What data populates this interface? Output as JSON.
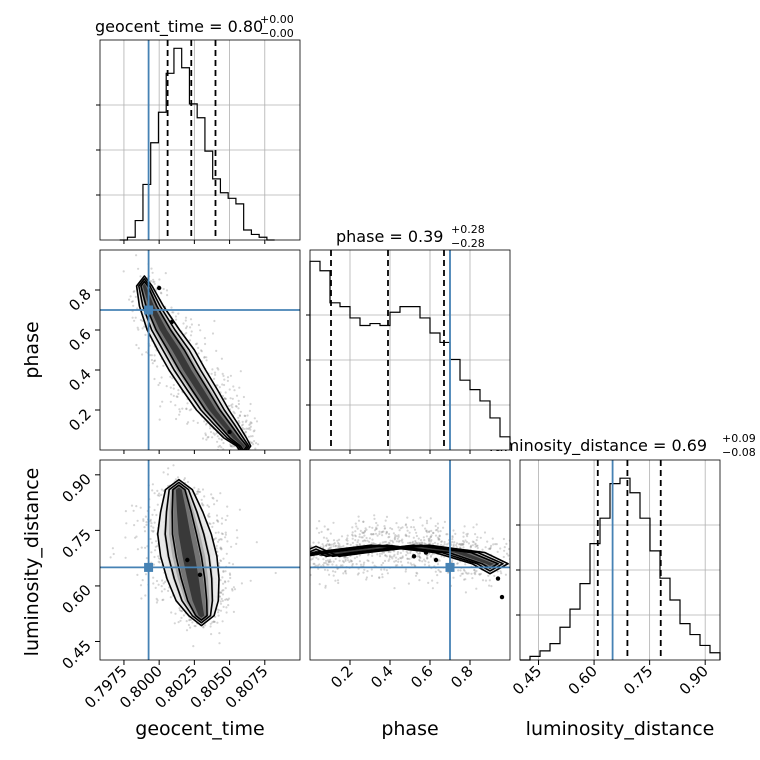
{
  "chart_data": {
    "type": "corner",
    "truth_color": "#4682b4",
    "params": [
      {
        "name": "geocent_time",
        "title": "geocent_time = 0.80",
        "err_plus": "+0.00",
        "err_minus": "−0.00",
        "range": [
          0.7958,
          0.81
        ],
        "ticks": [
          0.7975,
          0.8,
          0.8025,
          0.805,
          0.8075
        ],
        "tick_labels": [
          "0.7975",
          "0.8000",
          "0.8025",
          "0.8050",
          "0.8075"
        ],
        "truth": 0.79925,
        "quantiles": [
          0.8006,
          0.80228,
          0.804
        ],
        "hist": {
          "start": 0.7972,
          "width": 0.00055,
          "counts": [
            0.0,
            0.05,
            0.35,
            1.0,
            1.75,
            2.3,
            3.0,
            3.45,
            3.1,
            2.45,
            2.2,
            1.6,
            1.1,
            0.85,
            0.75,
            0.65,
            0.18,
            0.1,
            0.05,
            0.0
          ],
          "ylim": [
            0,
            3.6
          ]
        }
      },
      {
        "name": "phase",
        "title": "phase = 0.39",
        "err_plus": "+0.28",
        "err_minus": "−0.28",
        "range": [
          0.0,
          1.0
        ],
        "ticks": [
          0.2,
          0.4,
          0.6,
          0.8
        ],
        "tick_labels": [
          "0.2",
          "0.4",
          "0.6",
          "0.8"
        ],
        "truth": 0.7,
        "quantiles": [
          0.105,
          0.39,
          0.67
        ],
        "hist": {
          "start": 0.0,
          "width": 0.05,
          "counts": [
            1.0,
            0.95,
            0.78,
            0.76,
            0.7,
            0.66,
            0.67,
            0.66,
            0.73,
            0.76,
            0.76,
            0.7,
            0.62,
            0.57,
            0.48,
            0.37,
            0.32,
            0.26,
            0.17,
            0.07
          ],
          "ylim": [
            0,
            1.06
          ]
        }
      },
      {
        "name": "luminosity_distance",
        "title": "luminosity_distance = 0.69",
        "err_plus": "+0.09",
        "err_minus": "−0.08",
        "range": [
          0.4,
          0.94
        ],
        "ticks": [
          0.45,
          0.6,
          0.75,
          0.9
        ],
        "tick_labels": [
          "0.45",
          "0.60",
          "0.75",
          "0.90"
        ],
        "truth": 0.65,
        "quantiles": [
          0.61,
          0.69,
          0.78
        ],
        "hist": {
          "start": 0.4,
          "width": 0.027,
          "counts": [
            0.0,
            0.02,
            0.05,
            0.09,
            0.18,
            0.28,
            0.42,
            0.64,
            0.78,
            0.97,
            1.0,
            0.92,
            0.78,
            0.6,
            0.45,
            0.33,
            0.2,
            0.14,
            0.08,
            0.04
          ],
          "ylim": [
            0,
            1.1
          ]
        }
      }
    ],
    "pairs": [
      {
        "row": 1,
        "col": 0,
        "x_param": "geocent_time",
        "y_param": "phase",
        "truth": [
          0.79925,
          0.7
        ],
        "ridge": [
          [
            0.79895,
            0.82
          ],
          [
            0.79945,
            0.72
          ],
          [
            0.8003,
            0.6
          ],
          [
            0.8012,
            0.5
          ],
          [
            0.802,
            0.4
          ],
          [
            0.8029,
            0.3
          ],
          [
            0.8038,
            0.2
          ],
          [
            0.8046,
            0.13
          ],
          [
            0.8054,
            0.06
          ],
          [
            0.806,
            0.02
          ]
        ],
        "widths": [
          0.00055,
          0.00085,
          0.00115,
          0.0013,
          0.0013,
          0.00125,
          0.00115,
          0.001,
          0.0008,
          0.0005
        ],
        "markers": [
          [
            0.8,
            0.81
          ],
          [
            0.8009,
            0.64
          ],
          [
            0.805,
            0.09
          ]
        ]
      },
      {
        "row": 2,
        "col": 0,
        "x_param": "geocent_time",
        "y_param": "luminosity_distance",
        "truth": [
          0.79925,
          0.65
        ],
        "ridge": [
          [
            0.8014,
            0.86
          ],
          [
            0.8016,
            0.8
          ],
          [
            0.8018,
            0.74
          ],
          [
            0.8021,
            0.68
          ],
          [
            0.8024,
            0.62
          ],
          [
            0.8027,
            0.56
          ],
          [
            0.803,
            0.52
          ]
        ],
        "widths": [
          0.00095,
          0.0015,
          0.0019,
          0.002,
          0.00185,
          0.0015,
          0.0009
        ],
        "markers": [
          [
            0.802,
            0.67
          ],
          [
            0.8029,
            0.63
          ]
        ]
      },
      {
        "row": 2,
        "col": 1,
        "x_param": "phase",
        "y_param": "luminosity_distance",
        "truth": [
          0.7,
          0.65
        ],
        "ridge": [
          [
            0.03,
            0.68
          ],
          [
            0.15,
            0.69
          ],
          [
            0.3,
            0.7
          ],
          [
            0.45,
            0.71
          ],
          [
            0.6,
            0.7
          ],
          [
            0.75,
            0.69
          ],
          [
            0.9,
            0.66
          ]
        ],
        "widths": [
          0.115,
          0.135,
          0.145,
          0.145,
          0.135,
          0.125,
          0.09
        ],
        "markers": [
          [
            0.52,
            0.68
          ],
          [
            0.58,
            0.69
          ],
          [
            0.63,
            0.67
          ],
          [
            0.7,
            0.65
          ],
          [
            0.94,
            0.62
          ],
          [
            0.96,
            0.57
          ]
        ]
      }
    ]
  }
}
